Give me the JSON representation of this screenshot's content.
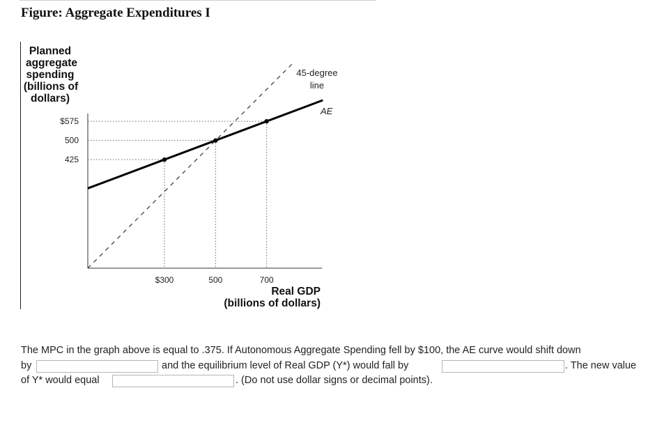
{
  "figure_title": "Figure: Aggregate Expenditures I",
  "chart_data": {
    "type": "line",
    "title": "",
    "ylabel_lines": [
      "Planned",
      "aggregate",
      "spending",
      "(billions of",
      "dollars)"
    ],
    "xlabel_lines": [
      "Real GDP",
      "(billions of dollars)"
    ],
    "x_ticks": [
      {
        "value": 300,
        "label": "$300"
      },
      {
        "value": 500,
        "label": "500"
      },
      {
        "value": 700,
        "label": "700"
      }
    ],
    "y_ticks": [
      {
        "value": 425,
        "label": "425"
      },
      {
        "value": 500,
        "label": "500"
      },
      {
        "value": 575,
        "label": "$575"
      }
    ],
    "series": [
      {
        "name": "AE",
        "style": "solid",
        "color": "#000000",
        "points": [
          [
            0,
            312.5
          ],
          [
            300,
            425
          ],
          [
            500,
            500
          ],
          [
            700,
            575
          ],
          [
            920,
            657.5
          ]
        ],
        "markers": [
          [
            300,
            425
          ],
          [
            500,
            500
          ],
          [
            700,
            575
          ]
        ]
      },
      {
        "name": "45-degree line",
        "style": "dashed",
        "color": "#333333",
        "points": [
          [
            0,
            0
          ],
          [
            800,
            800
          ]
        ]
      }
    ],
    "guide_lines": [
      {
        "x": 300,
        "y": 425
      },
      {
        "x": 500,
        "y": 500
      },
      {
        "x": 700,
        "y": 575
      }
    ],
    "annotations": {
      "forty_five": [
        "45-degree",
        "line"
      ],
      "ae": "AE"
    },
    "grid": false,
    "legend": "none"
  },
  "question": {
    "line1": "The MPC in the graph above is equal to .375. If Autonomous Aggregate Spending fell by $100, the AE curve would shift down",
    "by_text": "by",
    "mid_text": "and the equilibrium level of Real GDP (Y*) would fall by",
    "new_value_text": ". The new value",
    "of_text": "of Y* would equal",
    "end_text": ". (Do not use dollar signs or decimal points).",
    "answer1": "",
    "answer2": "",
    "answer3": ""
  }
}
